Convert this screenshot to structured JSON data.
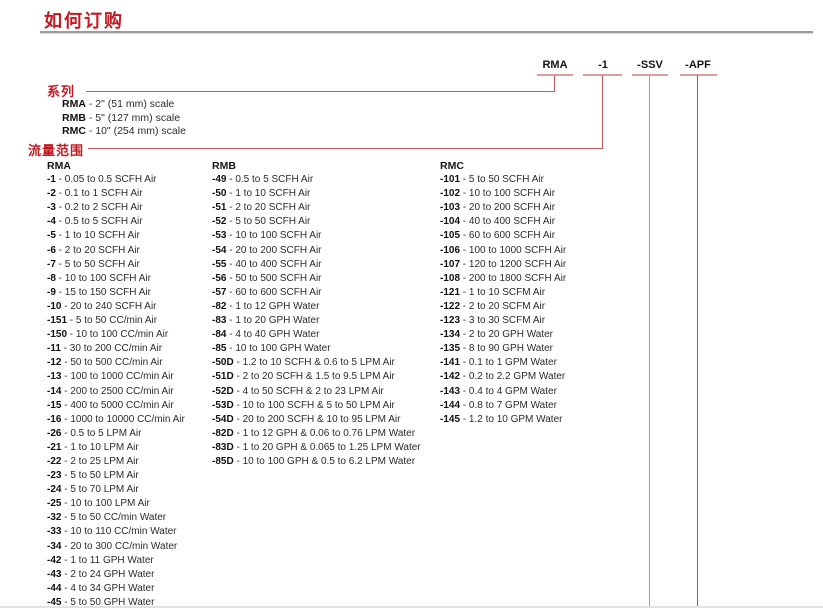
{
  "page": {
    "title": "如何订购"
  },
  "order_code": {
    "segments": [
      {
        "label": "RMA"
      },
      {
        "label": "-1"
      },
      {
        "label": "-SSV"
      },
      {
        "label": "-APF"
      }
    ]
  },
  "series_section": {
    "label": "系列",
    "items": [
      {
        "code": "RMA",
        "desc": "2\" (51 mm) scale"
      },
      {
        "code": "RMB",
        "desc": "5\" (127 mm) scale"
      },
      {
        "code": "RMC",
        "desc": "10\" (254 mm) scale"
      }
    ]
  },
  "flow_range_section": {
    "label": "流量范围",
    "columns": [
      {
        "header": "RMA",
        "items": [
          {
            "code": "-1",
            "desc": "0.05 to 0.5 SCFH Air"
          },
          {
            "code": "-2",
            "desc": "0.1 to 1 SCFH Air"
          },
          {
            "code": "-3",
            "desc": "0.2 to 2 SCFH Air"
          },
          {
            "code": "-4",
            "desc": "0.5 to 5 SCFH Air"
          },
          {
            "code": "-5",
            "desc": "1 to 10 SCFH Air"
          },
          {
            "code": "-6",
            "desc": "2 to 20 SCFH Air"
          },
          {
            "code": "-7",
            "desc": "5 to 50 SCFH Air"
          },
          {
            "code": "-8",
            "desc": "10 to 100 SCFH Air"
          },
          {
            "code": "-9",
            "desc": "15 to 150 SCFH Air"
          },
          {
            "code": "-10",
            "desc": "20 to 240 SCFH Air"
          },
          {
            "code": "-151",
            "desc": "5 to 50 CC/min Air"
          },
          {
            "code": "-150",
            "desc": "10 to 100 CC/min Air"
          },
          {
            "code": "-11",
            "desc": "30 to 200 CC/min Air"
          },
          {
            "code": "-12",
            "desc": "50 to 500 CC/min Air"
          },
          {
            "code": "-13",
            "desc": "100 to 1000 CC/min Air"
          },
          {
            "code": "-14",
            "desc": "200 to 2500 CC/min Air"
          },
          {
            "code": "-15",
            "desc": "400 to 5000 CC/min Air"
          },
          {
            "code": "-16",
            "desc": "1000 to 10000 CC/min Air"
          },
          {
            "code": "-26",
            "desc": "0.5 to 5 LPM Air"
          },
          {
            "code": "-21",
            "desc": "1 to 10 LPM Air"
          },
          {
            "code": "-22",
            "desc": "2 to 25 LPM Air"
          },
          {
            "code": "-23",
            "desc": "5 to 50 LPM Air"
          },
          {
            "code": "-24",
            "desc": "5 to 70 LPM Air"
          },
          {
            "code": "-25",
            "desc": "10 to 100 LPM Air"
          },
          {
            "code": "-32",
            "desc": "5 to 50 CC/min Water"
          },
          {
            "code": "-33",
            "desc": "10 to 110 CC/min Water"
          },
          {
            "code": "-34",
            "desc": "20 to 300 CC/min Water"
          },
          {
            "code": "-42",
            "desc": "1 to 11 GPH Water"
          },
          {
            "code": "-43",
            "desc": "2 to 24 GPH Water"
          },
          {
            "code": "-44",
            "desc": "4 to 34 GPH Water"
          },
          {
            "code": "-45",
            "desc": "5 to 50 GPH Water"
          }
        ]
      },
      {
        "header": "RMB",
        "items": [
          {
            "code": "-49",
            "desc": "0.5 to 5 SCFH Air"
          },
          {
            "code": "-50",
            "desc": "1 to 10 SCFH Air"
          },
          {
            "code": "-51",
            "desc": "2 to 20 SCFH Air"
          },
          {
            "code": "-52",
            "desc": "5 to 50 SCFH Air"
          },
          {
            "code": "-53",
            "desc": "10 to 100 SCFH Air"
          },
          {
            "code": "-54",
            "desc": "20 to 200 SCFH Air"
          },
          {
            "code": "-55",
            "desc": "40 to 400 SCFH Air"
          },
          {
            "code": "-56",
            "desc": "50 to 500 SCFH Air"
          },
          {
            "code": "-57",
            "desc": "60 to 600 SCFH Air"
          },
          {
            "code": "-82",
            "desc": "1 to 12 GPH Water"
          },
          {
            "code": "-83",
            "desc": "1 to 20 GPH Water"
          },
          {
            "code": "-84",
            "desc": "4 to 40 GPH Water"
          },
          {
            "code": "-85",
            "desc": "10 to 100 GPH Water"
          },
          {
            "code": "-50D",
            "desc": "1.2 to 10 SCFH & 0.6 to 5 LPM Air"
          },
          {
            "code": "-51D",
            "desc": "2 to 20 SCFH & 1.5 to 9.5 LPM Air"
          },
          {
            "code": "-52D",
            "desc": "4 to 50 SCFH & 2 to 23 LPM Air"
          },
          {
            "code": "-53D",
            "desc": "10 to 100 SCFH & 5 to 50 LPM Air"
          },
          {
            "code": "-54D",
            "desc": "20 to 200 SCFH & 10 to 95 LPM Air"
          },
          {
            "code": "-82D",
            "desc": "1 to 12 GPH & 0.06 to 0.76 LPM Water"
          },
          {
            "code": "-83D",
            "desc": "1 to 20 GPH & 0.065 to 1.25 LPM Water"
          },
          {
            "code": "-85D",
            "desc": "10 to 100 GPH & 0.5 to 6.2 LPM Water"
          }
        ]
      },
      {
        "header": "RMC",
        "items": [
          {
            "code": "-101",
            "desc": "5 to 50 SCFH Air"
          },
          {
            "code": "-102",
            "desc": "10 to 100 SCFH Air"
          },
          {
            "code": "-103",
            "desc": "20 to 200 SCFH Air"
          },
          {
            "code": "-104",
            "desc": "40 to 400 SCFH Air"
          },
          {
            "code": "-105",
            "desc": "60 to 600 SCFH Air"
          },
          {
            "code": "-106",
            "desc": "100 to 1000 SCFH Air"
          },
          {
            "code": "-107",
            "desc": "120 to 1200 SCFH Air"
          },
          {
            "code": "-108",
            "desc": "200 to 1800 SCFH Air"
          },
          {
            "code": "-121",
            "desc": "1 to 10 SCFM Air"
          },
          {
            "code": "-122",
            "desc": "2 to 20 SCFM Air"
          },
          {
            "code": "-123",
            "desc": "3 to 30 SCFM Air"
          },
          {
            "code": "-134",
            "desc": "2 to 20 GPH Water"
          },
          {
            "code": "-135",
            "desc": "8 to 90 GPH Water"
          },
          {
            "code": "-141",
            "desc": "0.1 to 1 GPM Water"
          },
          {
            "code": "-142",
            "desc": "0.2 to 2.2 GPM Water"
          },
          {
            "code": "-143",
            "desc": "0.4 to 4 GPM Water"
          },
          {
            "code": "-144",
            "desc": "0.8 to 7 GPM Water"
          },
          {
            "code": "-145",
            "desc": "1.2 to 10 GPM Water"
          }
        ]
      }
    ]
  },
  "colors": {
    "accent_red": "#c11b22",
    "connector_red": "#c25b5b",
    "underline_pink": "#dc9e9e",
    "rule_gray": "#9c9c9c"
  }
}
